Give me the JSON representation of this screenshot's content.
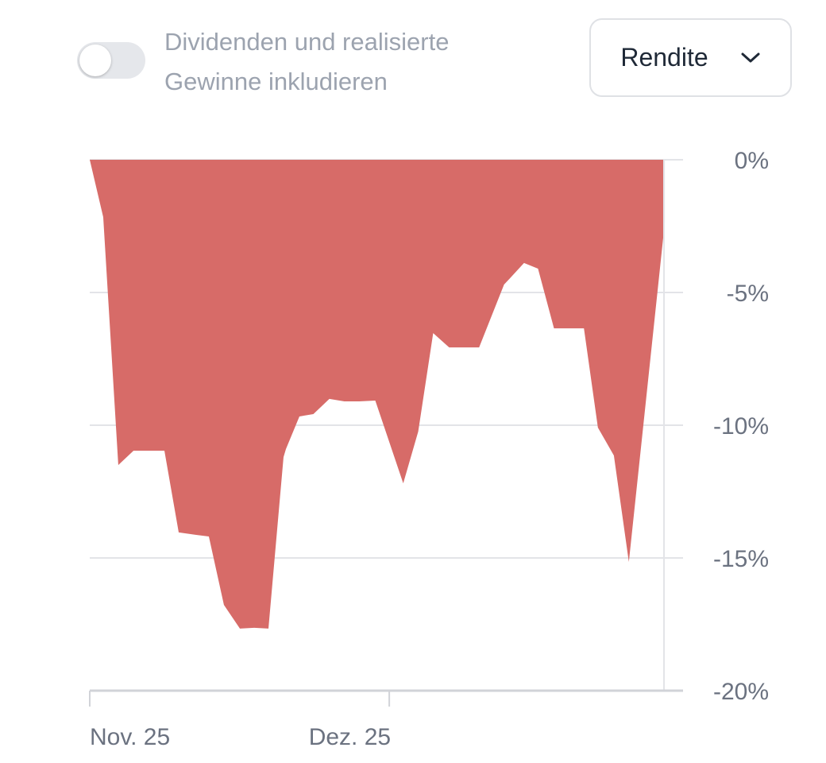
{
  "controls": {
    "toggle_label_line1": "Dividenden und realisierte",
    "toggle_label_line2": "Gewinne inkludieren",
    "toggle_on": false,
    "dropdown_selected": "Rendite",
    "dropdown_icon": "chevron-down-icon"
  },
  "chart_data": {
    "type": "area",
    "title": "",
    "xlabel": "",
    "ylabel": "",
    "x_unit": "days since Nov. 25",
    "x": [
      0,
      1.35,
      2.86,
      4.38,
      5.97,
      7.48,
      8.91,
      10.66,
      11.93,
      13.44,
      15.04,
      16.47,
      17.9,
      19.41,
      19.65,
      21.0,
      22.4,
      24.0,
      25.5,
      27.0,
      28.6,
      31.4,
      32.9,
      34.4,
      36.0,
      39.0,
      41.5,
      42.1,
      43.5,
      44.9,
      46.5,
      49.5,
      50.9,
      52.5,
      54.0,
      57.6
    ],
    "series": [
      {
        "name": "Rendite",
        "color": "#d76b68",
        "values": [
          0,
          -2.16,
          -11.5,
          -10.96,
          -10.96,
          -10.96,
          -14.04,
          -14.13,
          -14.19,
          -16.77,
          -17.66,
          -17.63,
          -17.66,
          -11.2,
          -10.9,
          -9.67,
          -9.58,
          -9.01,
          -9.1,
          -9.1,
          -9.07,
          -12.19,
          -10.24,
          -6.53,
          -7.07,
          -7.07,
          -4.7,
          -4.46,
          -3.89,
          -4.1,
          -6.35,
          -6.35,
          -10.09,
          -11.14,
          -15.15,
          -2.37
        ]
      }
    ],
    "ylim": [
      -20,
      0
    ],
    "xlim": [
      0,
      57.6
    ],
    "y_ticks": [
      0,
      -5,
      -10,
      -15,
      -20
    ],
    "y_tick_labels": [
      "0%",
      "-5%",
      "-10%",
      "-15%",
      "-20%"
    ],
    "x_ticks": [
      0,
      30
    ],
    "x_tick_labels": [
      "Nov. 25",
      "Dez. 25"
    ],
    "grid": true,
    "legend": "none"
  }
}
